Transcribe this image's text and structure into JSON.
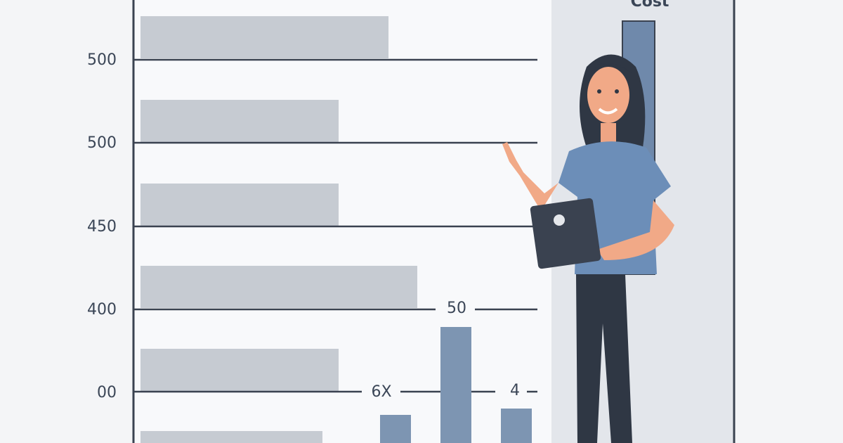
{
  "header": "Cost",
  "axis_labels": [
    "500",
    "500",
    "450",
    "400",
    "00"
  ],
  "annotations": [
    "50",
    "6X",
    "4"
  ]
}
